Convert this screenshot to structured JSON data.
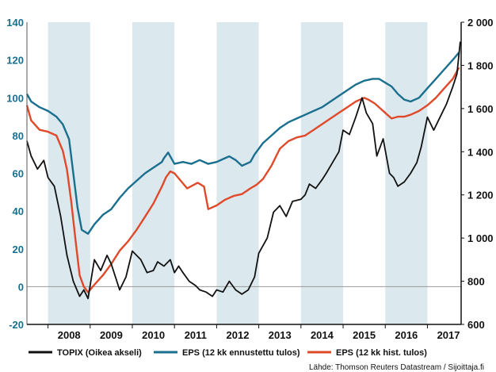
{
  "chart_data": {
    "type": "line",
    "title": "",
    "y_left": {
      "range": [
        -20,
        140
      ],
      "ticks": [
        -20,
        0,
        20,
        40,
        60,
        80,
        100,
        120,
        140
      ],
      "color": "#1a6f8f"
    },
    "y_right": {
      "range": [
        600,
        2000
      ],
      "ticks": [
        "600",
        "800",
        "1 000",
        "1 200",
        "1 400",
        "1 600",
        "1 800",
        "2 000"
      ],
      "tick_values": [
        600,
        800,
        1000,
        1200,
        1400,
        1600,
        1800,
        2000
      ]
    },
    "x": {
      "range": [
        2007.5,
        2017.8
      ],
      "ticks": [
        "2008",
        "2009",
        "2010",
        "2011",
        "2012",
        "2013",
        "2014",
        "2015",
        "2016",
        "2017"
      ],
      "tick_values": [
        2008,
        2009,
        2010,
        2011,
        2012,
        2013,
        2014,
        2015,
        2016,
        2017
      ]
    },
    "shaded_years": [
      2008,
      2010,
      2012,
      2014,
      2016
    ],
    "shade_color": "#dbe9ee",
    "series": [
      {
        "name": "TOPIX (Oikea akseli)",
        "axis": "right",
        "color": "#111111",
        "x": [
          2007.5,
          2007.6,
          2007.75,
          2007.9,
          2008.0,
          2008.15,
          2008.3,
          2008.45,
          2008.6,
          2008.75,
          2008.85,
          2008.95,
          2009.1,
          2009.25,
          2009.4,
          2009.5,
          2009.7,
          2009.85,
          2010.0,
          2010.2,
          2010.35,
          2010.5,
          2010.6,
          2010.75,
          2010.9,
          2011.0,
          2011.1,
          2011.2,
          2011.35,
          2011.5,
          2011.6,
          2011.75,
          2011.9,
          2012.0,
          2012.15,
          2012.3,
          2012.45,
          2012.6,
          2012.75,
          2012.9,
          2013.0,
          2013.2,
          2013.35,
          2013.5,
          2013.65,
          2013.8,
          2014.0,
          2014.1,
          2014.2,
          2014.35,
          2014.5,
          2014.6,
          2014.75,
          2014.9,
          2015.0,
          2015.15,
          2015.3,
          2015.45,
          2015.55,
          2015.7,
          2015.8,
          2015.95,
          2016.1,
          2016.2,
          2016.3,
          2016.45,
          2016.6,
          2016.75,
          2016.85,
          2017.0,
          2017.15,
          2017.3,
          2017.45,
          2017.6,
          2017.7,
          2017.78
        ],
        "values": [
          1450,
          1380,
          1320,
          1360,
          1280,
          1240,
          1100,
          920,
          800,
          730,
          760,
          720,
          900,
          850,
          920,
          880,
          760,
          820,
          940,
          900,
          840,
          850,
          890,
          870,
          900,
          840,
          870,
          840,
          800,
          780,
          760,
          750,
          730,
          760,
          750,
          800,
          760,
          740,
          760,
          820,
          930,
          1000,
          1120,
          1150,
          1100,
          1170,
          1180,
          1200,
          1250,
          1230,
          1270,
          1300,
          1350,
          1400,
          1500,
          1480,
          1560,
          1650,
          1580,
          1530,
          1380,
          1460,
          1300,
          1280,
          1240,
          1260,
          1300,
          1350,
          1420,
          1560,
          1500,
          1560,
          1620,
          1700,
          1760,
          1910
        ]
      },
      {
        "name": "EPS (12 kk ennustettu tulos)",
        "axis": "left",
        "color": "#1a6f8f",
        "x": [
          2007.5,
          2007.6,
          2007.8,
          2008.0,
          2008.2,
          2008.35,
          2008.5,
          2008.6,
          2008.7,
          2008.8,
          2008.95,
          2009.1,
          2009.3,
          2009.5,
          2009.7,
          2009.9,
          2010.1,
          2010.3,
          2010.5,
          2010.7,
          2010.75,
          2010.85,
          2011.0,
          2011.2,
          2011.4,
          2011.5,
          2011.6,
          2011.8,
          2012.0,
          2012.2,
          2012.3,
          2012.45,
          2012.6,
          2012.8,
          2012.9,
          2013.1,
          2013.3,
          2013.5,
          2013.7,
          2013.9,
          2014.1,
          2014.3,
          2014.5,
          2014.7,
          2014.9,
          2015.1,
          2015.3,
          2015.5,
          2015.7,
          2015.85,
          2016.0,
          2016.15,
          2016.3,
          2016.45,
          2016.6,
          2016.8,
          2017.0,
          2017.2,
          2017.4,
          2017.6,
          2017.75
        ],
        "values": [
          102,
          98,
          95,
          93,
          90,
          86,
          78,
          60,
          42,
          30,
          28,
          33,
          38,
          41,
          47,
          52,
          56,
          60,
          63,
          66,
          68,
          71,
          65,
          66,
          65,
          66,
          67,
          65,
          66,
          68,
          69,
          67,
          64,
          66,
          70,
          76,
          80,
          84,
          87,
          89,
          91,
          93,
          95,
          98,
          101,
          104,
          107,
          109,
          110,
          110,
          108,
          106,
          102,
          99,
          98,
          100,
          105,
          110,
          115,
          120,
          124
        ]
      },
      {
        "name": "EPS (12 kk hist. tulos)",
        "axis": "left",
        "color": "#e0492a",
        "x": [
          2007.5,
          2007.6,
          2007.8,
          2008.0,
          2008.2,
          2008.35,
          2008.45,
          2008.55,
          2008.65,
          2008.75,
          2008.85,
          2008.95,
          2009.1,
          2009.3,
          2009.5,
          2009.7,
          2009.9,
          2010.1,
          2010.3,
          2010.5,
          2010.7,
          2010.8,
          2010.9,
          2011.0,
          2011.3,
          2011.55,
          2011.7,
          2011.8,
          2012.0,
          2012.2,
          2012.4,
          2012.6,
          2012.8,
          2012.95,
          2013.1,
          2013.3,
          2013.5,
          2013.7,
          2013.9,
          2014.1,
          2014.3,
          2014.5,
          2014.7,
          2014.9,
          2015.1,
          2015.3,
          2015.5,
          2015.6,
          2015.75,
          2015.9,
          2016.0,
          2016.15,
          2016.3,
          2016.45,
          2016.6,
          2016.8,
          2017.0,
          2017.2,
          2017.4,
          2017.6,
          2017.75
        ],
        "values": [
          96,
          88,
          83,
          82,
          80,
          72,
          62,
          45,
          25,
          6,
          0,
          -3,
          1,
          6,
          12,
          19,
          24,
          30,
          37,
          44,
          53,
          58,
          61,
          60,
          52,
          55,
          53,
          41,
          43,
          46,
          48,
          49,
          52,
          54,
          57,
          64,
          73,
          77,
          79,
          80,
          83,
          86,
          89,
          92,
          95,
          98,
          100,
          99,
          97,
          94,
          92,
          89,
          90,
          90,
          91,
          93,
          96,
          100,
          105,
          110,
          116
        ]
      }
    ],
    "legend": {
      "position": "bottom"
    },
    "x_axis_labels": [
      "2008",
      "2009",
      "2010",
      "2011",
      "2012",
      "2013",
      "2014",
      "2015",
      "2016",
      "2017"
    ],
    "source": "Lähde: Thomson Reuters Datastream / Sijoittaja.fi"
  }
}
